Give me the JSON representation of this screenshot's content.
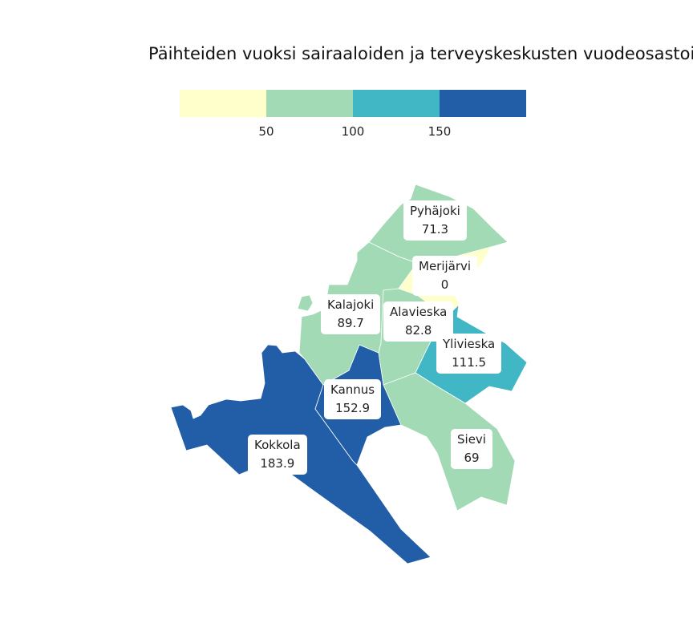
{
  "title": "Päihteiden vuoksi sairaaloiden ja terveyskeskusten vuodeosastoil",
  "legend": {
    "ticks": [
      "50",
      "100",
      "150"
    ],
    "colors": [
      "#ffffcc",
      "#a1dab4",
      "#41b6c4",
      "#225ea8"
    ]
  },
  "regions": [
    {
      "name": "Pyhäjoki",
      "value": "71.3",
      "color": "#a1dab4"
    },
    {
      "name": "Merijärvi",
      "value": "0",
      "color": "#ffffcc"
    },
    {
      "name": "Kalajoki",
      "value": "89.7",
      "color": "#a1dab4"
    },
    {
      "name": "Alavieska",
      "value": "82.8",
      "color": "#a1dab4"
    },
    {
      "name": "Ylivieska",
      "value": "111.5",
      "color": "#41b6c4"
    },
    {
      "name": "Kannus",
      "value": "152.9",
      "color": "#225ea8"
    },
    {
      "name": "Sievi",
      "value": "69",
      "color": "#a1dab4"
    },
    {
      "name": "Kokkola",
      "value": "183.9",
      "color": "#225ea8"
    }
  ]
}
